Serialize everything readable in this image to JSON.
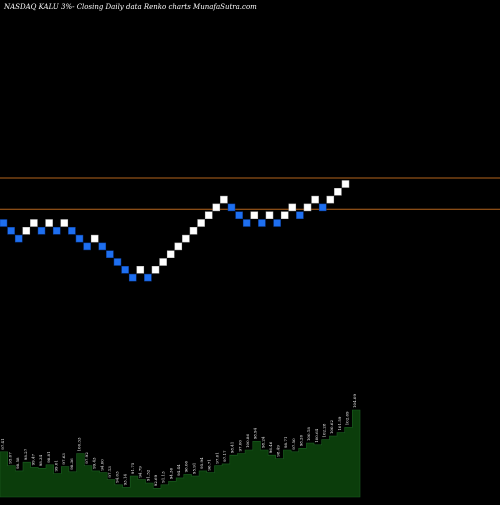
{
  "chart_data": {
    "type": "renko",
    "title": "NASDAQ KALU  3%-  Closing Daily data  Renko  charts MunafaSutra.com",
    "xlabel": "",
    "ylabel": "",
    "grid": false,
    "legend": "none",
    "colors": {
      "background": "#000000",
      "up_brick": "#ffffff",
      "down_brick": "#1e6ff0",
      "resistance_line": "#b5651d",
      "volume_fill": "#0b3d0b",
      "volume_stroke": "#1b5e20",
      "volume_label": "#ffffff"
    },
    "bricks": [
      {
        "level": 0,
        "dir": "down"
      },
      {
        "level": -1,
        "dir": "down"
      },
      {
        "level": -2,
        "dir": "down"
      },
      {
        "level": -1,
        "dir": "up"
      },
      {
        "level": 0,
        "dir": "up"
      },
      {
        "level": -1,
        "dir": "down"
      },
      {
        "level": 0,
        "dir": "up"
      },
      {
        "level": -1,
        "dir": "down"
      },
      {
        "level": 0,
        "dir": "up"
      },
      {
        "level": -1,
        "dir": "down"
      },
      {
        "level": -2,
        "dir": "down"
      },
      {
        "level": -3,
        "dir": "down"
      },
      {
        "level": -2,
        "dir": "up"
      },
      {
        "level": -3,
        "dir": "down"
      },
      {
        "level": -4,
        "dir": "down"
      },
      {
        "level": -5,
        "dir": "down"
      },
      {
        "level": -6,
        "dir": "down"
      },
      {
        "level": -7,
        "dir": "down"
      },
      {
        "level": -6,
        "dir": "up"
      },
      {
        "level": -7,
        "dir": "down"
      },
      {
        "level": -6,
        "dir": "up"
      },
      {
        "level": -5,
        "dir": "up"
      },
      {
        "level": -4,
        "dir": "up"
      },
      {
        "level": -3,
        "dir": "up"
      },
      {
        "level": -2,
        "dir": "up"
      },
      {
        "level": -1,
        "dir": "up"
      },
      {
        "level": 0,
        "dir": "up"
      },
      {
        "level": 1,
        "dir": "up"
      },
      {
        "level": 2,
        "dir": "up"
      },
      {
        "level": 3,
        "dir": "up"
      },
      {
        "level": 2,
        "dir": "down"
      },
      {
        "level": 1,
        "dir": "down"
      },
      {
        "level": 0,
        "dir": "down"
      },
      {
        "level": 1,
        "dir": "up"
      },
      {
        "level": 0,
        "dir": "down"
      },
      {
        "level": 1,
        "dir": "up"
      },
      {
        "level": 0,
        "dir": "down"
      },
      {
        "level": 1,
        "dir": "up"
      },
      {
        "level": 2,
        "dir": "up"
      },
      {
        "level": 1,
        "dir": "down"
      },
      {
        "level": 2,
        "dir": "up"
      },
      {
        "level": 3,
        "dir": "up"
      },
      {
        "level": 2,
        "dir": "down"
      },
      {
        "level": 3,
        "dir": "up"
      },
      {
        "level": 4,
        "dir": "up"
      },
      {
        "level": 5,
        "dir": "up"
      }
    ],
    "resistance_levels": [
      5,
      1
    ],
    "volume_labels": [
      "97.41",
      "95.07",
      "98.58",
      "98.27",
      "99.47",
      "98.34",
      "98.81",
      "99.01",
      "97.63",
      "98.36",
      "100.33",
      "97.92",
      "99.43",
      "94.00",
      "97.13",
      "94.03",
      "93.14",
      "91.75",
      "94.79",
      "91.52",
      "92.69",
      "91.13",
      "94.36",
      "94.44",
      "96.06",
      "95.91",
      "95.94",
      "96.71",
      "97.61",
      "97.17",
      "98.41",
      "97.00",
      "100.86",
      "98.94",
      "98.24",
      "96.46",
      "98.49",
      "98.71",
      "97.50",
      "98.20",
      "100.18",
      "100.64",
      "102.28",
      "100.62",
      "101.59",
      "102.69",
      "104.09"
    ],
    "volume_heights": [
      0.52,
      0.36,
      0.3,
      0.4,
      0.34,
      0.33,
      0.37,
      0.27,
      0.35,
      0.29,
      0.5,
      0.36,
      0.3,
      0.28,
      0.2,
      0.14,
      0.11,
      0.24,
      0.2,
      0.16,
      0.1,
      0.14,
      0.18,
      0.22,
      0.26,
      0.24,
      0.3,
      0.28,
      0.36,
      0.38,
      0.48,
      0.5,
      0.54,
      0.64,
      0.54,
      0.48,
      0.44,
      0.54,
      0.52,
      0.56,
      0.62,
      0.6,
      0.66,
      0.7,
      0.74,
      0.8,
      1.0
    ]
  }
}
